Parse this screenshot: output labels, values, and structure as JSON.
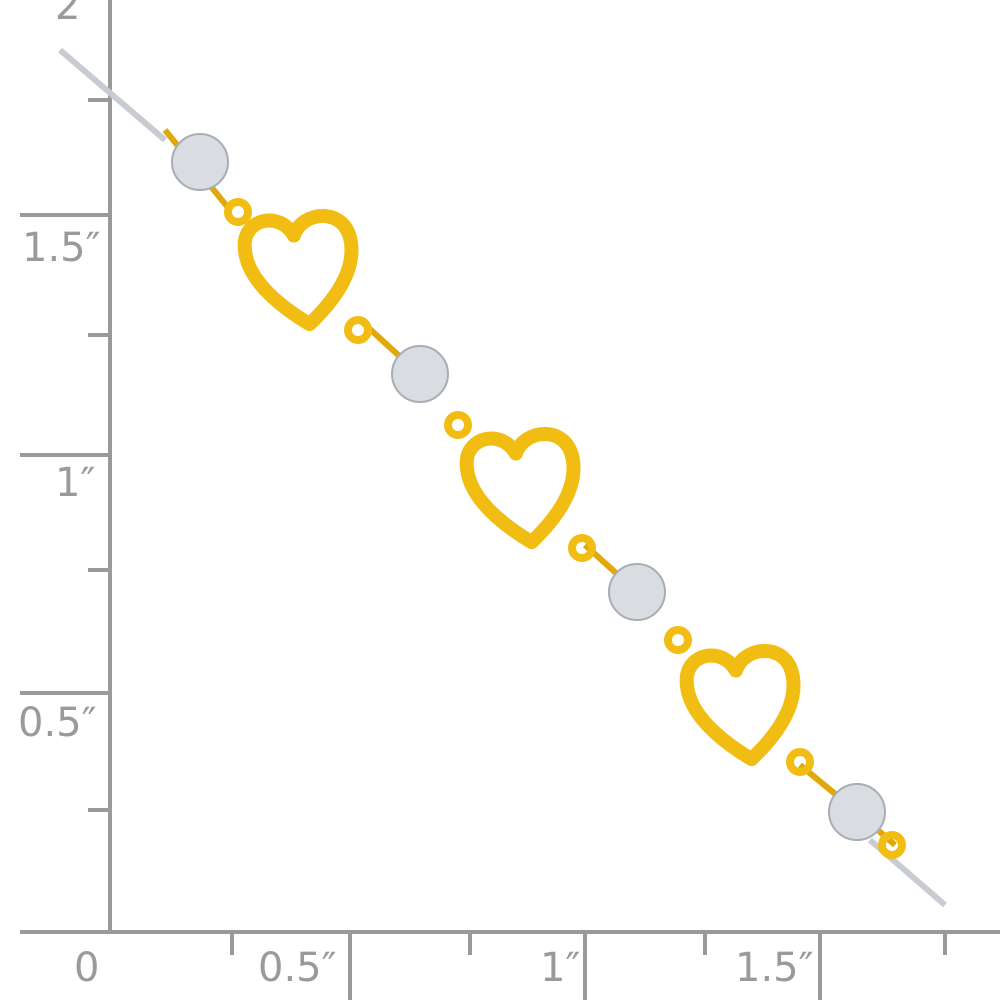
{
  "ruler": {
    "vertical_labels": [
      "2",
      "1.5″",
      "1″",
      "0.5″"
    ],
    "horizontal_labels": [
      "0",
      "0.5″",
      "1″",
      "1.5″"
    ],
    "color": "#9a9a9a"
  },
  "product": {
    "gold_color": "#f2bd12",
    "silver_color": "#d9dde2"
  }
}
